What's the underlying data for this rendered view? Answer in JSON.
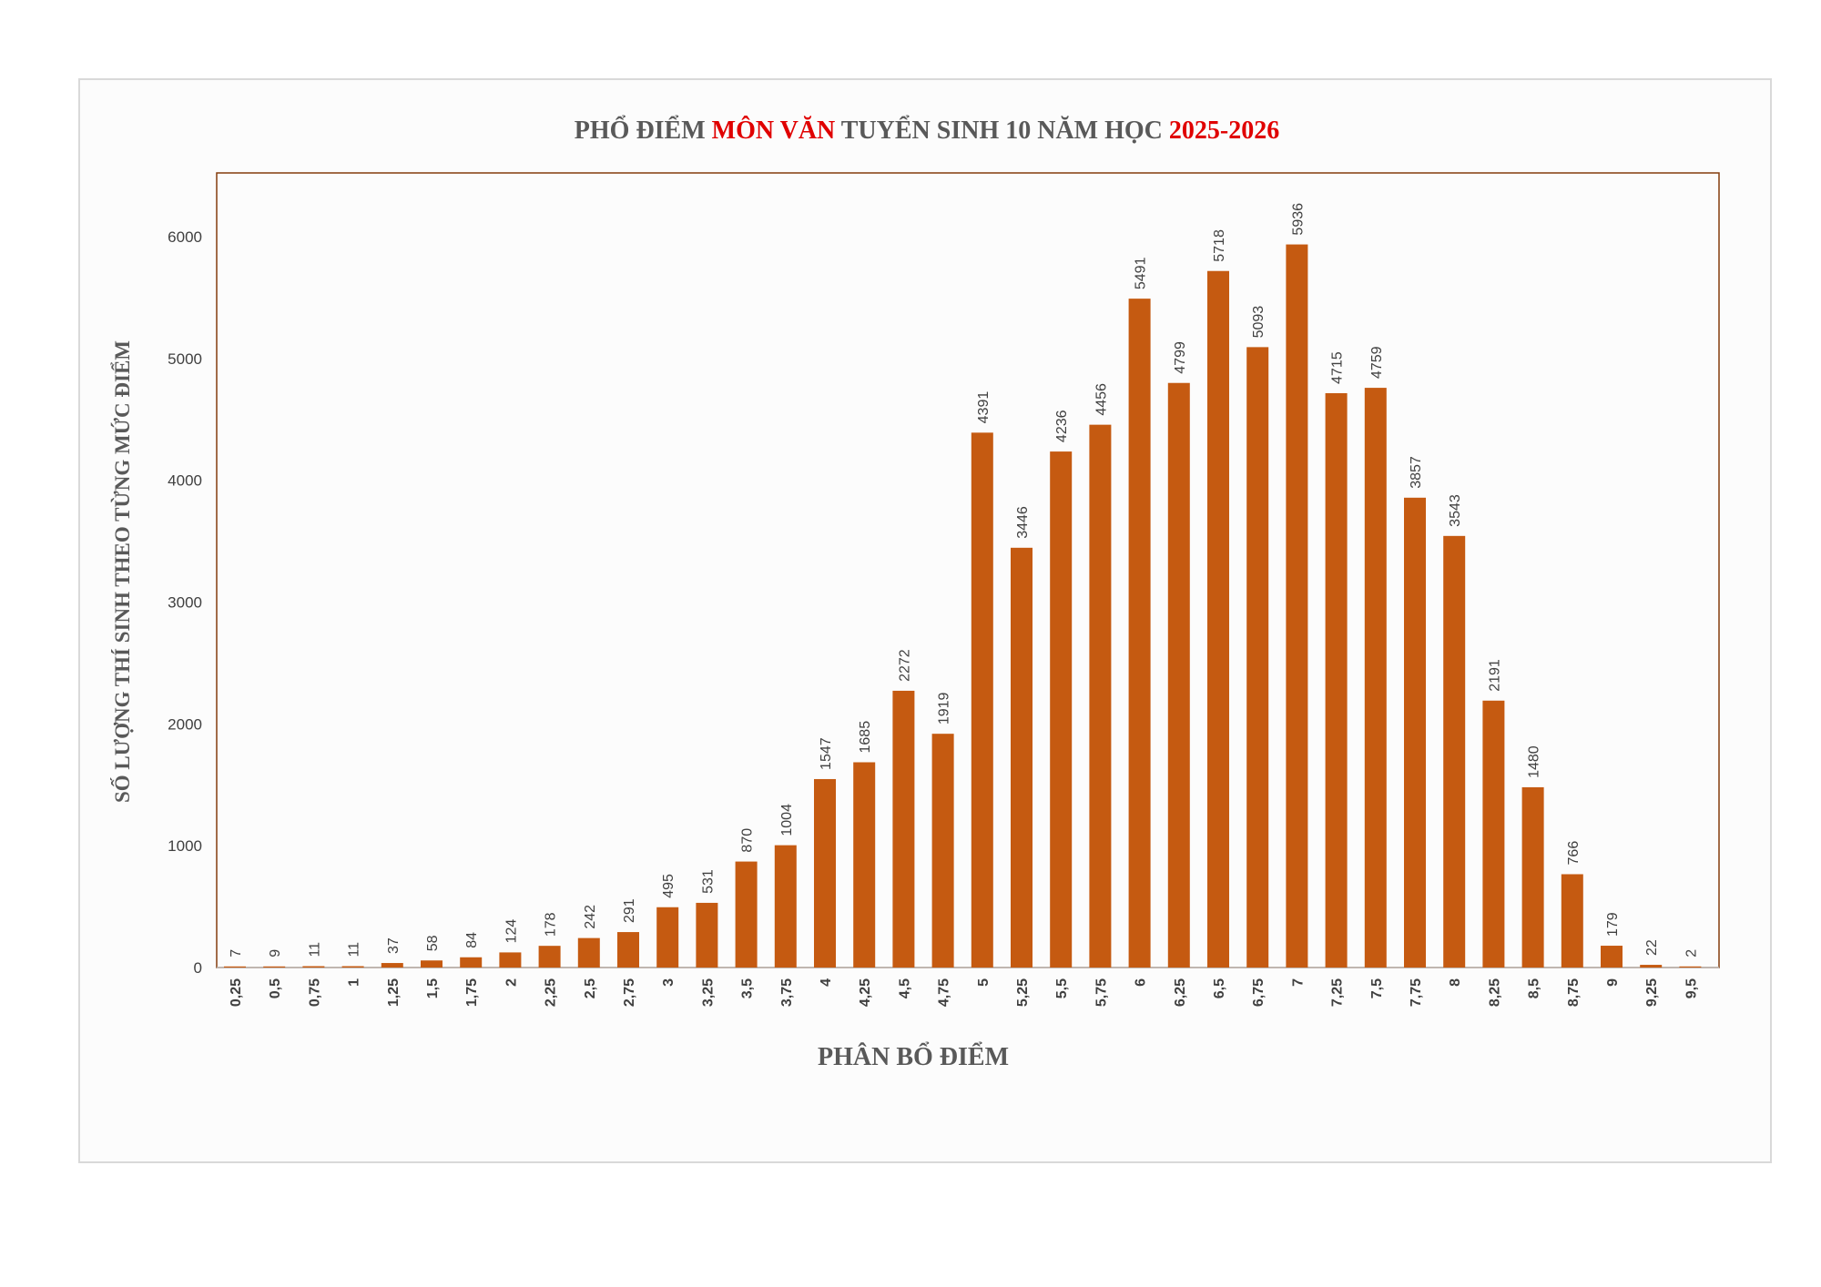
{
  "chart_data": {
    "type": "bar",
    "title": {
      "part1": "PHỔ ĐIỂM ",
      "part2": "MÔN VĂN",
      "part3": " TUYỂN SINH 10 NĂM HỌC ",
      "part4": "2025-2026"
    },
    "xlabel": "PHÂN BỔ ĐIỂM",
    "ylabel": "SỐ LƯỢNG THÍ SINH THEO TỪNG MỨC ĐIỂM",
    "ylim": [
      0,
      6500
    ],
    "yticks": [
      0,
      1000,
      2000,
      3000,
      4000,
      5000,
      6000
    ],
    "categories": [
      "0,25",
      "0,5",
      "0,75",
      "1",
      "1,25",
      "1,5",
      "1,75",
      "2",
      "2,25",
      "2,5",
      "2,75",
      "3",
      "3,25",
      "3,5",
      "3,75",
      "4",
      "4,25",
      "4,5",
      "4,75",
      "5",
      "5,25",
      "5,5",
      "5,75",
      "6",
      "6,25",
      "6,5",
      "6,75",
      "7",
      "7,25",
      "7,5",
      "7,75",
      "8",
      "8,25",
      "8,5",
      "8,75",
      "9",
      "9,25",
      "9,5"
    ],
    "values": [
      7,
      9,
      11,
      11,
      37,
      58,
      84,
      124,
      178,
      242,
      291,
      495,
      531,
      870,
      1004,
      1547,
      1685,
      2272,
      1919,
      4391,
      3446,
      4236,
      4456,
      5491,
      4799,
      5718,
      5093,
      5936,
      4715,
      4759,
      3857,
      3543,
      2191,
      1480,
      766,
      179,
      22,
      2
    ],
    "grid": false
  },
  "colors": {
    "bar": "#c55a11",
    "title_dark": "#595959",
    "title_accent": "#e00000",
    "plot_border": "#843c0c",
    "axis_text": "#404040"
  }
}
